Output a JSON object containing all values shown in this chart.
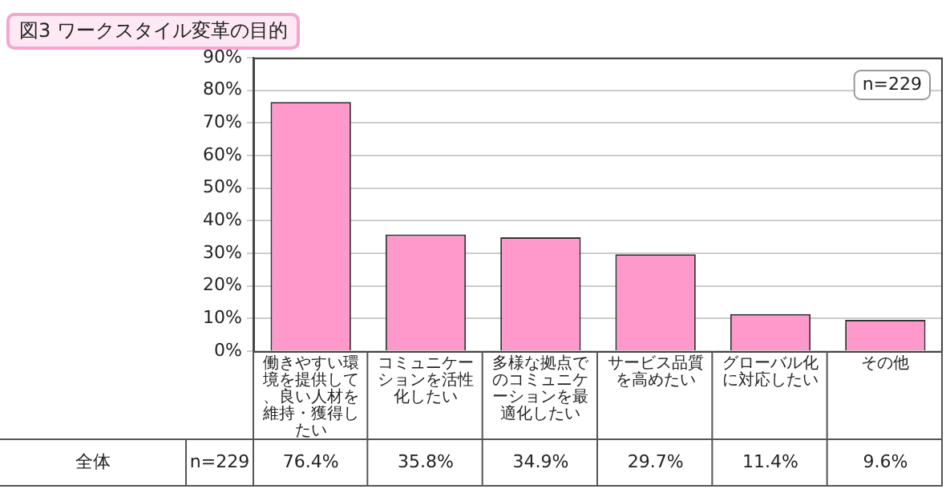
{
  "chart_data": {
    "type": "bar",
    "title": "図3 ワークスタイル変革の目的",
    "categories": [
      "働きやすい環境を提供して、良い人材を維持・獲得したい",
      "コミュニケーションを活性化したい",
      "多様な拠点でのコミュニケーションを最適化したい",
      "サービス品質を高めたい",
      "グローバル化に対応したい",
      "その他"
    ],
    "values": [
      76.4,
      35.8,
      34.9,
      29.7,
      11.4,
      9.6
    ],
    "value_labels": [
      "76.4%",
      "35.8%",
      "34.9%",
      "29.7%",
      "11.4%",
      "9.6%"
    ],
    "color": "#ff99cc",
    "ylim": [
      0,
      90
    ],
    "yticks": [
      {
        "value": 0,
        "label": "0%"
      },
      {
        "value": 10,
        "label": "10%"
      },
      {
        "value": 20,
        "label": "20%"
      },
      {
        "value": 30,
        "label": "30%"
      },
      {
        "value": 40,
        "label": "40%"
      },
      {
        "value": 50,
        "label": "50%"
      },
      {
        "value": 60,
        "label": "60%"
      },
      {
        "value": 70,
        "label": "70%"
      },
      {
        "value": 80,
        "label": "80%"
      },
      {
        "value": 90,
        "label": "90%"
      }
    ],
    "grid": "y",
    "legend": false,
    "annotations": [
      "n=229",
      "全体",
      "n=229"
    ]
  }
}
